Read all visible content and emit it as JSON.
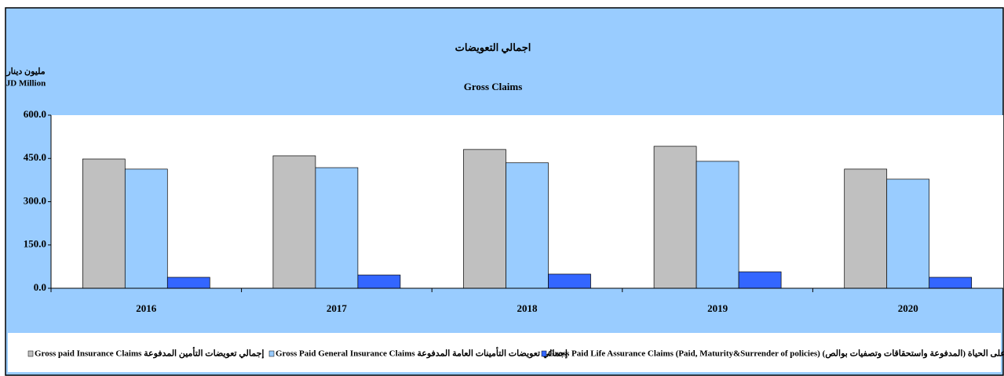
{
  "chart_data": {
    "type": "bar",
    "title": "اجمالي التعويضات",
    "subtitle": "Gross Claims",
    "y_label_ar": "مليون دينار",
    "y_label": "JD Million",
    "categories": [
      "2016",
      "2017",
      "2018",
      "2019",
      "2020"
    ],
    "series": [
      {
        "name": "Gross paid Insurance Claims إجمالي تعويضات التأمين المدفوعة",
        "color": "#c0c0c0",
        "values": [
          448,
          459,
          481,
          492,
          413
        ]
      },
      {
        "name": "Gross Paid General Insurance Claims إجمالي تعويضات التأمينات العامة المدفوعة",
        "color": "#99ccff",
        "values": [
          413,
          418,
          435,
          440,
          378
        ]
      },
      {
        "name": "Gross Paid Life Assurance Claims (Paid, Maturity&Surrender of policies) إجمالي تعويضات التأمين على الحياة (المدفوعة واستحقاقات وتصفيات بوالص)",
        "color": "#3366ff",
        "values": [
          38,
          46,
          49,
          57,
          38
        ]
      }
    ],
    "ylim": [
      0,
      600
    ],
    "yticks": [
      {
        "value": 0,
        "label": "0.0"
      },
      {
        "value": 150,
        "label": "150.0"
      },
      {
        "value": 300,
        "label": "300.0"
      },
      {
        "value": 450,
        "label": "450.0"
      },
      {
        "value": 600,
        "label": "600.0"
      }
    ],
    "grid": false
  }
}
